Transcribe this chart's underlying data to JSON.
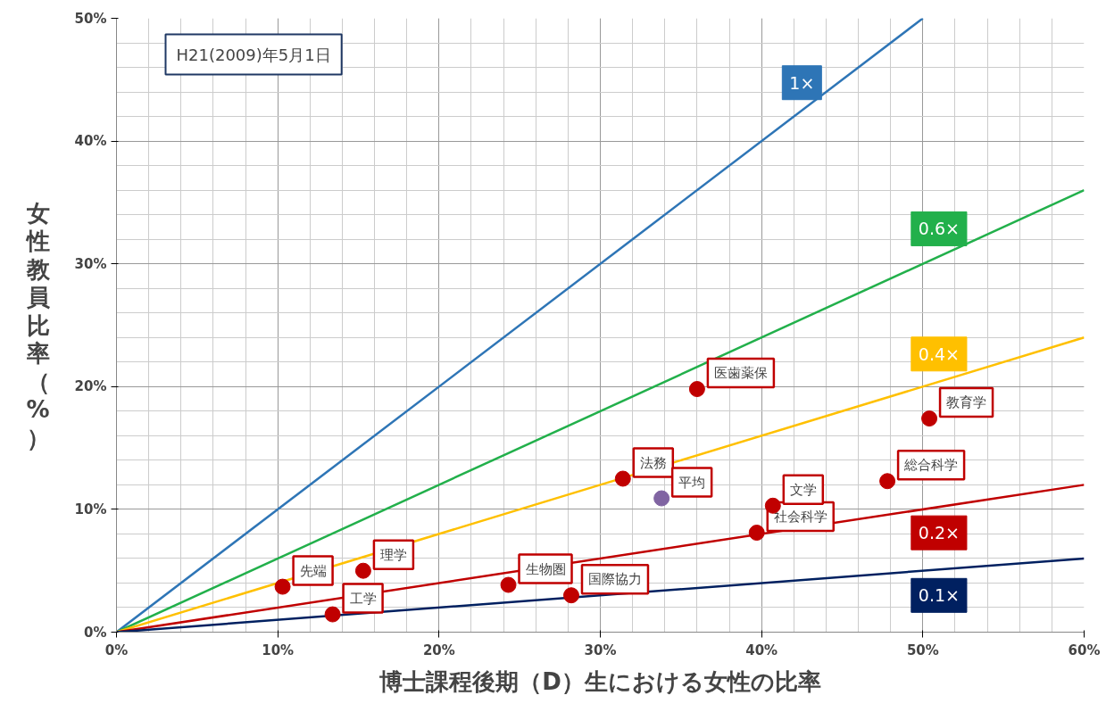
{
  "chart_data": {
    "type": "scatter",
    "xlabel": "博士課程後期（D）生における女性の比率",
    "ylabel": "女性教員比率（%）",
    "xlim": [
      0,
      60
    ],
    "ylim": [
      0,
      50
    ],
    "xticks": [
      {
        "value": 0,
        "label": "0%"
      },
      {
        "value": 10,
        "label": "10%"
      },
      {
        "value": 20,
        "label": "20%"
      },
      {
        "value": 30,
        "label": "30%"
      },
      {
        "value": 40,
        "label": "40%"
      },
      {
        "value": 50,
        "label": "50%"
      },
      {
        "value": 60,
        "label": "60%"
      }
    ],
    "yticks": [
      {
        "value": 0,
        "label": "0%"
      },
      {
        "value": 10,
        "label": "10%"
      },
      {
        "value": 20,
        "label": "20%"
      },
      {
        "value": 30,
        "label": "30%"
      },
      {
        "value": 40,
        "label": "40%"
      },
      {
        "value": 50,
        "label": "50%"
      }
    ],
    "grid": true,
    "series": [
      {
        "name": "1×",
        "type": "line",
        "color": "#2e75b6",
        "x": [
          0,
          50
        ],
        "values": [
          0,
          50
        ]
      },
      {
        "name": "0.6×",
        "type": "line",
        "color": "#22b04b",
        "x": [
          0,
          60
        ],
        "values": [
          0,
          36
        ]
      },
      {
        "name": "0.4×",
        "type": "line",
        "color": "#ffc000",
        "x": [
          0,
          60
        ],
        "values": [
          0,
          24
        ]
      },
      {
        "name": "0.2×",
        "type": "line",
        "color": "#c00000",
        "x": [
          0,
          60
        ],
        "values": [
          0,
          12
        ]
      },
      {
        "name": "0.1×",
        "type": "line",
        "color": "#002060",
        "x": [
          0,
          60
        ],
        "values": [
          0,
          6
        ]
      },
      {
        "marker": "circle",
        "x": [
          10.3,
          15.3,
          13.4,
          24.3,
          28.2,
          31.4,
          33.8,
          36.0,
          39.7,
          40.7,
          47.8,
          50.4
        ],
        "values": [
          3.7,
          5.0,
          1.45,
          3.85,
          3.0,
          12.5,
          10.9,
          19.8,
          8.1,
          10.3,
          12.3,
          17.4
        ],
        "colors": [
          "#c00000",
          "#c00000",
          "#c00000",
          "#c00000",
          "#c00000",
          "#c00000",
          "#8064a2",
          "#c00000",
          "#c00000",
          "#c00000",
          "#c00000",
          "#c00000"
        ]
      }
    ],
    "annotations": [
      "H21(2009)年5月1日",
      {
        "text": "先端",
        "x": 10.3,
        "y": 3.7
      },
      {
        "text": "理学",
        "x": 15.3,
        "y": 5.0
      },
      {
        "text": "工学",
        "x": 13.4,
        "y": 1.45
      },
      {
        "text": "生物圏",
        "x": 24.3,
        "y": 3.85
      },
      {
        "text": "国際協力",
        "x": 28.2,
        "y": 3.0
      },
      {
        "text": "法務",
        "x": 31.4,
        "y": 12.5
      },
      {
        "text": "平均",
        "x": 33.8,
        "y": 10.9
      },
      {
        "text": "医歯薬保",
        "x": 36.0,
        "y": 19.8
      },
      {
        "text": "社会科学",
        "x": 39.7,
        "y": 8.1
      },
      {
        "text": "文学",
        "x": 40.7,
        "y": 10.3
      },
      {
        "text": "総合科学",
        "x": 47.8,
        "y": 12.3
      },
      {
        "text": "教育学",
        "x": 50.4,
        "y": 17.4
      }
    ]
  }
}
